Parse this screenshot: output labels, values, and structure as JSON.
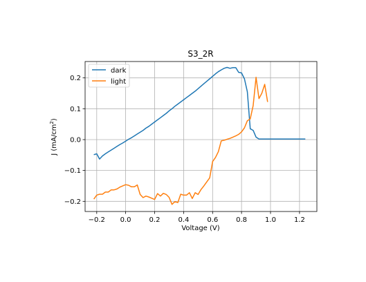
{
  "chart_data": {
    "type": "line",
    "title": "S3_2R",
    "xlabel": "Voltage (V)",
    "ylabel_prefix": "J (mA/cm",
    "ylabel_sup": "2",
    "ylabel_suffix": ")",
    "xlim": [
      -0.28,
      1.32
    ],
    "ylim": [
      -0.233,
      0.253
    ],
    "grid": true,
    "legend_position": "top-left",
    "x_ticks": [
      -0.2,
      0.0,
      0.2,
      0.4,
      0.6,
      0.8,
      1.0,
      1.2
    ],
    "x_tick_labels": [
      "−0.2",
      "0.0",
      "0.2",
      "0.4",
      "0.6",
      "0.8",
      "1.0",
      "1.2"
    ],
    "y_ticks": [
      -0.2,
      -0.1,
      0.0,
      0.1,
      0.2
    ],
    "y_tick_labels": [
      "−0.2",
      "−0.1",
      "0.0",
      "0.1",
      "0.2"
    ],
    "series": [
      {
        "name": "dark",
        "color": "#1f77b4",
        "points": [
          [
            -0.22,
            -0.049
          ],
          [
            -0.2,
            -0.046
          ],
          [
            -0.18,
            -0.063
          ],
          [
            -0.16,
            -0.053
          ],
          [
            -0.14,
            -0.046
          ],
          [
            -0.12,
            -0.04
          ],
          [
            -0.1,
            -0.034
          ],
          [
            -0.08,
            -0.028
          ],
          [
            -0.06,
            -0.022
          ],
          [
            -0.04,
            -0.016
          ],
          [
            -0.02,
            -0.011
          ],
          [
            0.0,
            -0.005
          ],
          [
            0.02,
            0.001
          ],
          [
            0.04,
            0.006
          ],
          [
            0.06,
            0.012
          ],
          [
            0.08,
            0.018
          ],
          [
            0.1,
            0.024
          ],
          [
            0.12,
            0.03
          ],
          [
            0.14,
            0.037
          ],
          [
            0.16,
            0.043
          ],
          [
            0.18,
            0.05
          ],
          [
            0.2,
            0.057
          ],
          [
            0.22,
            0.064
          ],
          [
            0.24,
            0.071
          ],
          [
            0.26,
            0.078
          ],
          [
            0.28,
            0.085
          ],
          [
            0.3,
            0.093
          ],
          [
            0.32,
            0.1
          ],
          [
            0.34,
            0.108
          ],
          [
            0.36,
            0.115
          ],
          [
            0.38,
            0.122
          ],
          [
            0.4,
            0.129
          ],
          [
            0.42,
            0.136
          ],
          [
            0.44,
            0.143
          ],
          [
            0.46,
            0.15
          ],
          [
            0.48,
            0.157
          ],
          [
            0.5,
            0.165
          ],
          [
            0.52,
            0.173
          ],
          [
            0.54,
            0.181
          ],
          [
            0.56,
            0.189
          ],
          [
            0.58,
            0.197
          ],
          [
            0.6,
            0.205
          ],
          [
            0.62,
            0.213
          ],
          [
            0.64,
            0.22
          ],
          [
            0.66,
            0.226
          ],
          [
            0.68,
            0.231
          ],
          [
            0.7,
            0.234
          ],
          [
            0.72,
            0.231
          ],
          [
            0.74,
            0.233
          ],
          [
            0.76,
            0.233
          ],
          [
            0.78,
            0.218
          ],
          [
            0.8,
            0.216
          ],
          [
            0.82,
            0.197
          ],
          [
            0.84,
            0.155
          ],
          [
            0.86,
            0.035
          ],
          [
            0.88,
            0.03
          ],
          [
            0.9,
            0.008
          ],
          [
            0.92,
            0.002
          ],
          [
            0.95,
            0.002
          ],
          [
            1.0,
            0.002
          ],
          [
            1.05,
            0.002
          ],
          [
            1.1,
            0.002
          ],
          [
            1.15,
            0.002
          ],
          [
            1.2,
            0.002
          ],
          [
            1.24,
            0.002
          ]
        ]
      },
      {
        "name": "light",
        "color": "#ff7f0e",
        "points": [
          [
            -0.22,
            -0.193
          ],
          [
            -0.2,
            -0.18
          ],
          [
            -0.18,
            -0.177
          ],
          [
            -0.16,
            -0.177
          ],
          [
            -0.14,
            -0.17
          ],
          [
            -0.12,
            -0.17
          ],
          [
            -0.1,
            -0.163
          ],
          [
            -0.08,
            -0.163
          ],
          [
            -0.06,
            -0.16
          ],
          [
            -0.04,
            -0.154
          ],
          [
            -0.02,
            -0.15
          ],
          [
            0.0,
            -0.146
          ],
          [
            0.02,
            -0.148
          ],
          [
            0.04,
            -0.153
          ],
          [
            0.06,
            -0.153
          ],
          [
            0.08,
            -0.147
          ],
          [
            0.1,
            -0.178
          ],
          [
            0.12,
            -0.188
          ],
          [
            0.14,
            -0.183
          ],
          [
            0.16,
            -0.186
          ],
          [
            0.18,
            -0.19
          ],
          [
            0.2,
            -0.194
          ],
          [
            0.22,
            -0.175
          ],
          [
            0.24,
            -0.183
          ],
          [
            0.26,
            -0.174
          ],
          [
            0.28,
            -0.178
          ],
          [
            0.3,
            -0.187
          ],
          [
            0.32,
            -0.21
          ],
          [
            0.34,
            -0.201
          ],
          [
            0.36,
            -0.204
          ],
          [
            0.38,
            -0.177
          ],
          [
            0.4,
            -0.18
          ],
          [
            0.42,
            -0.18
          ],
          [
            0.44,
            -0.172
          ],
          [
            0.46,
            -0.191
          ],
          [
            0.48,
            -0.172
          ],
          [
            0.5,
            -0.178
          ],
          [
            0.52,
            -0.162
          ],
          [
            0.54,
            -0.15
          ],
          [
            0.56,
            -0.137
          ],
          [
            0.58,
            -0.124
          ],
          [
            0.6,
            -0.071
          ],
          [
            0.62,
            -0.058
          ],
          [
            0.64,
            -0.039
          ],
          [
            0.66,
            -0.004
          ],
          [
            0.68,
            -0.002
          ],
          [
            0.7,
            0.001
          ],
          [
            0.72,
            0.004
          ],
          [
            0.74,
            0.008
          ],
          [
            0.76,
            0.012
          ],
          [
            0.78,
            0.017
          ],
          [
            0.8,
            0.025
          ],
          [
            0.82,
            0.038
          ],
          [
            0.84,
            0.061
          ],
          [
            0.86,
            0.067
          ],
          [
            0.88,
            0.11
          ],
          [
            0.9,
            0.202
          ],
          [
            0.92,
            0.133
          ],
          [
            0.94,
            0.15
          ],
          [
            0.96,
            0.179
          ],
          [
            0.98,
            0.122
          ]
        ]
      }
    ]
  }
}
